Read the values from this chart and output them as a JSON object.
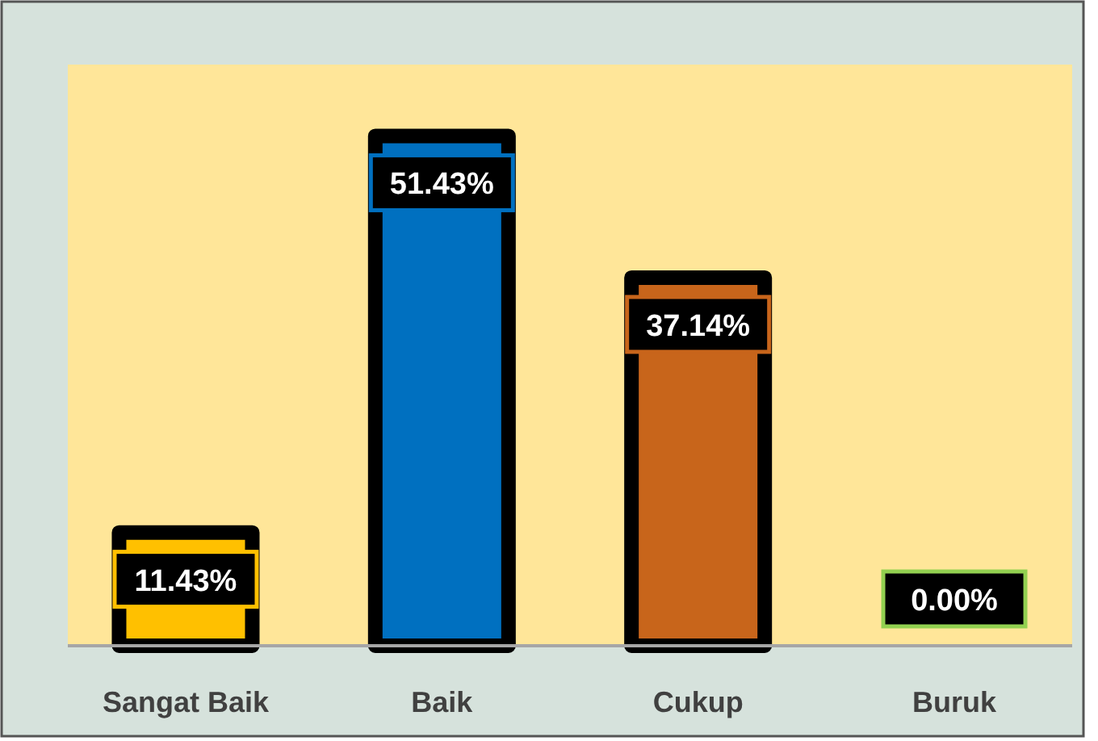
{
  "chart_data": {
    "type": "bar",
    "categories": [
      "Sangat Baik",
      "Baik",
      "Cukup",
      "Buruk"
    ],
    "values": [
      11.43,
      51.43,
      37.14,
      0.0
    ],
    "colors": [
      "#ffc000",
      "#0070c0",
      "#c8651b",
      "#92d050"
    ],
    "value_labels": [
      "11.43%",
      "51.43%",
      "37.14%",
      "0.00%"
    ]
  }
}
